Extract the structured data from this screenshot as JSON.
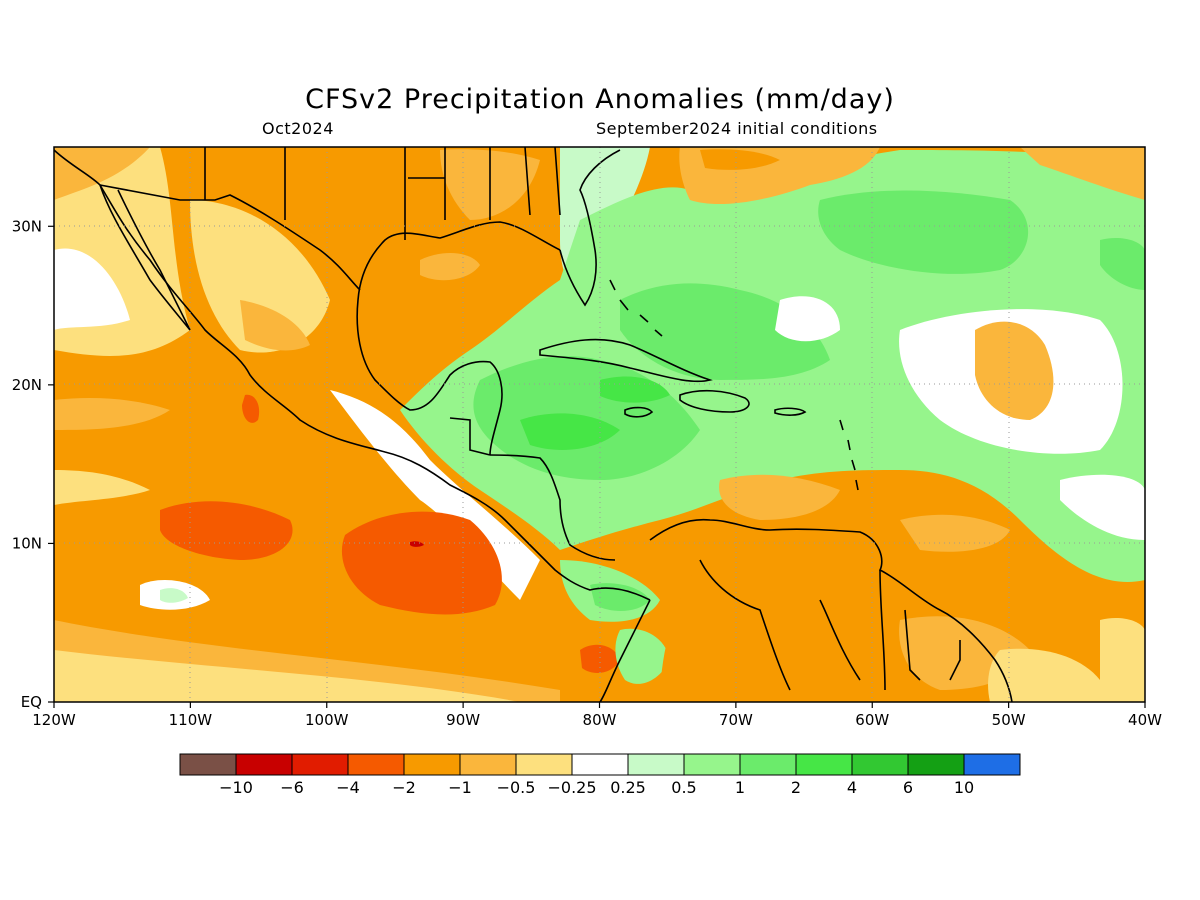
{
  "header": {
    "title": "CFSv2 Precipitation Anomalies (mm/day)",
    "valid_month": "Oct2024",
    "initial_conditions": "September2024 initial conditions"
  },
  "map": {
    "lon_range": [
      -120,
      -40
    ],
    "lat_range": [
      0,
      35
    ],
    "lon_ticks": [
      {
        "value": -120,
        "label": "120W"
      },
      {
        "value": -110,
        "label": "110W"
      },
      {
        "value": -100,
        "label": "100W"
      },
      {
        "value": -90,
        "label": "90W"
      },
      {
        "value": -80,
        "label": "80W"
      },
      {
        "value": -70,
        "label": "70W"
      },
      {
        "value": -60,
        "label": "60W"
      },
      {
        "value": -50,
        "label": "50W"
      },
      {
        "value": -40,
        "label": "40W"
      }
    ],
    "lat_ticks": [
      {
        "value": 0,
        "label": "EQ"
      },
      {
        "value": 10,
        "label": "10N"
      },
      {
        "value": 20,
        "label": "20N"
      },
      {
        "value": 30,
        "label": "30N"
      }
    ],
    "grid": "dotted"
  },
  "colorbar": {
    "colors": [
      "#7a5046",
      "#c80000",
      "#e11c00",
      "#f55a00",
      "#f79a00",
      "#fab63c",
      "#fde07e",
      "#ffffff",
      "#c8fac8",
      "#96f58c",
      "#6beb6b",
      "#46e646",
      "#32c832",
      "#14a014",
      "#1e6ee6"
    ],
    "labels": [
      "−10",
      "−6",
      "−4",
      "−2",
      "−1",
      "−0.5",
      "−0.25",
      "0.25",
      "0.5",
      "1",
      "2",
      "4",
      "6",
      "10"
    ]
  }
}
